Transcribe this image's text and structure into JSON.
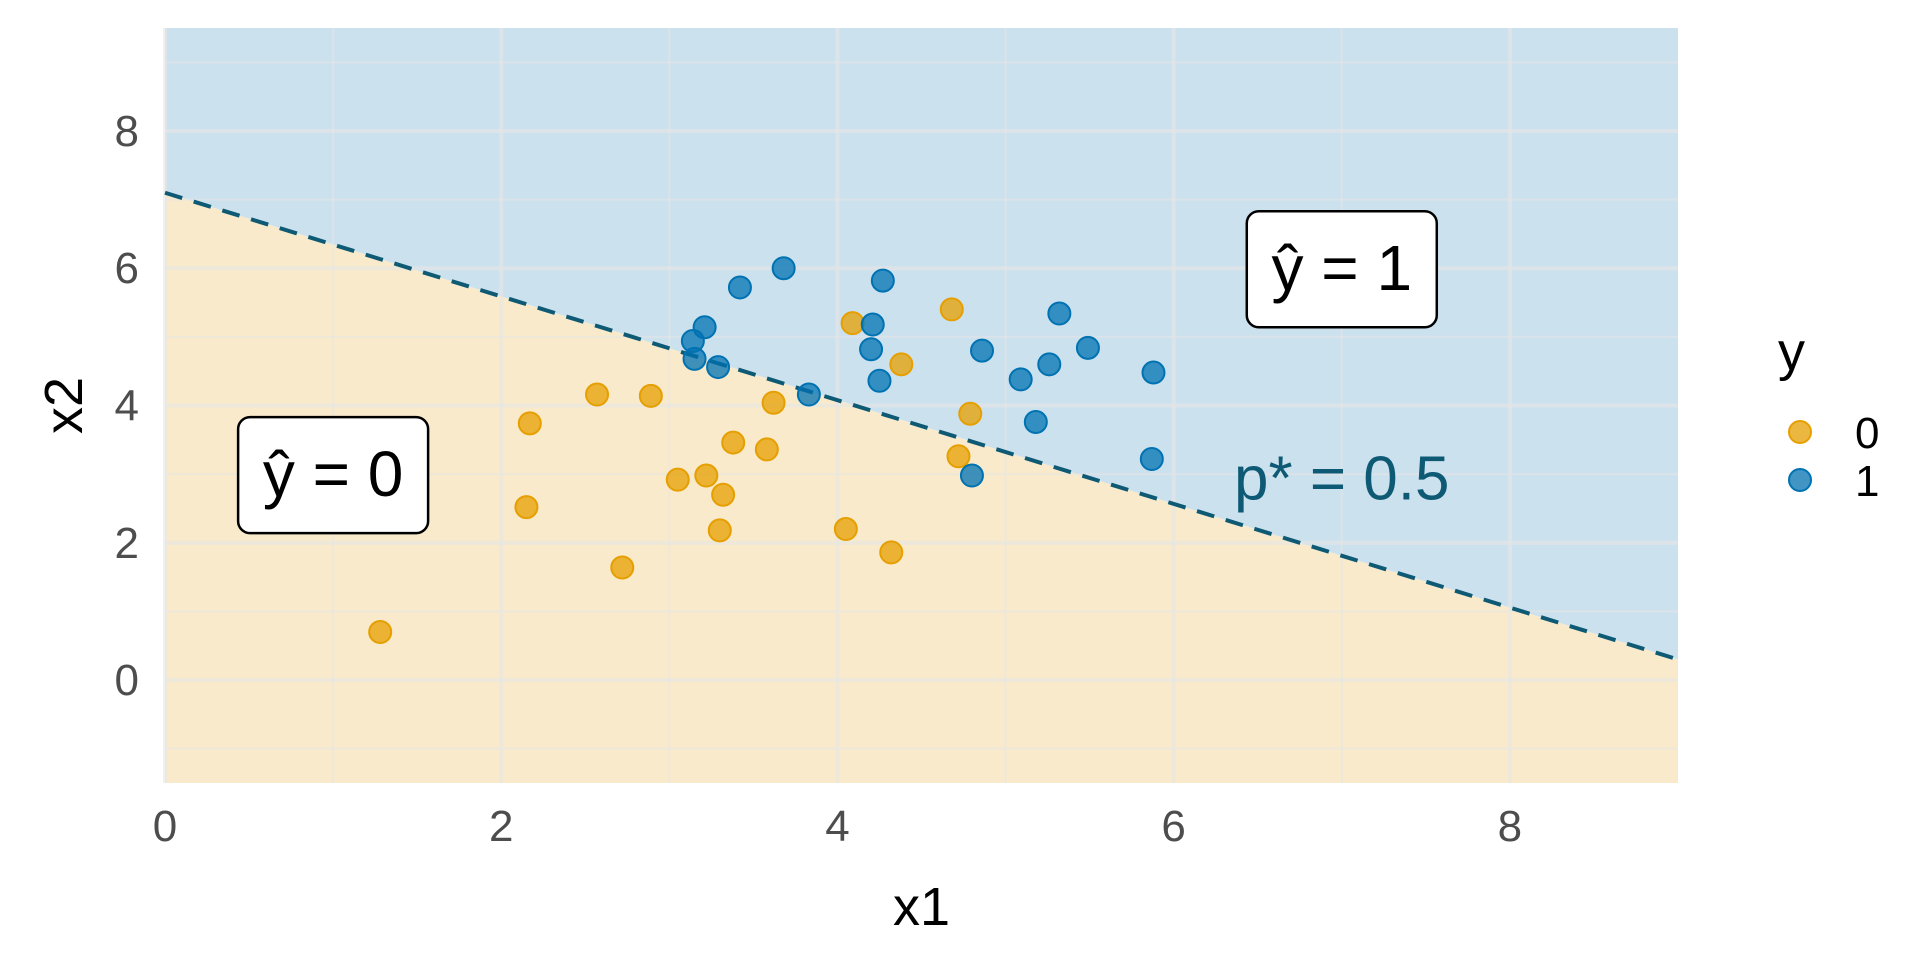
{
  "chart_data": {
    "type": "scatter",
    "title": "",
    "xlabel": "x1",
    "ylabel": "x2",
    "xlim": [
      0,
      9
    ],
    "ylim": [
      -1.5,
      9.5
    ],
    "x_ticks": [
      0,
      2,
      4,
      6,
      8
    ],
    "y_ticks": [
      0,
      2,
      4,
      6,
      8
    ],
    "grid": true,
    "legend": {
      "title": "y",
      "position": "right",
      "entries": [
        "0",
        "1"
      ]
    },
    "colors": {
      "class0": "#E69F00",
      "class1": "#0072B2",
      "region0": "#F9EACB",
      "region1": "#CCE1EE",
      "boundary": "#0E5A75",
      "grid": "#e6e6e6"
    },
    "decision_boundary": {
      "x": [
        0,
        9
      ],
      "y": [
        7.1,
        0.3
      ],
      "label": "p* = 0.5"
    },
    "region_labels": [
      {
        "text": "ŷ = 0",
        "x": 1.0,
        "y": 3.0
      },
      {
        "text": "ŷ = 1",
        "x": 7.0,
        "y": 6.0
      }
    ],
    "series": [
      {
        "name": "0",
        "x": [
          1.28,
          2.15,
          2.17,
          2.57,
          2.72,
          2.89,
          3.05,
          3.22,
          3.3,
          3.32,
          3.38,
          3.58,
          3.62,
          4.05,
          4.09,
          4.32,
          4.38,
          4.68,
          4.72,
          4.79
        ],
        "y": [
          0.7,
          2.52,
          3.74,
          4.16,
          1.64,
          4.14,
          2.92,
          2.98,
          2.18,
          2.7,
          3.46,
          3.36,
          4.04,
          2.2,
          5.2,
          1.86,
          4.6,
          5.4,
          3.26,
          3.88
        ]
      },
      {
        "name": "1",
        "x": [
          3.14,
          3.15,
          3.21,
          3.29,
          3.42,
          3.68,
          3.83,
          4.2,
          4.21,
          4.25,
          4.27,
          4.8,
          4.86,
          5.09,
          5.18,
          5.26,
          5.32,
          5.49,
          5.87,
          5.88
        ],
        "y": [
          4.94,
          4.68,
          5.14,
          4.56,
          5.72,
          6.0,
          4.16,
          4.82,
          5.18,
          4.36,
          5.82,
          2.98,
          4.8,
          4.38,
          3.76,
          4.6,
          5.34,
          4.84,
          3.22,
          4.48
        ]
      }
    ]
  }
}
